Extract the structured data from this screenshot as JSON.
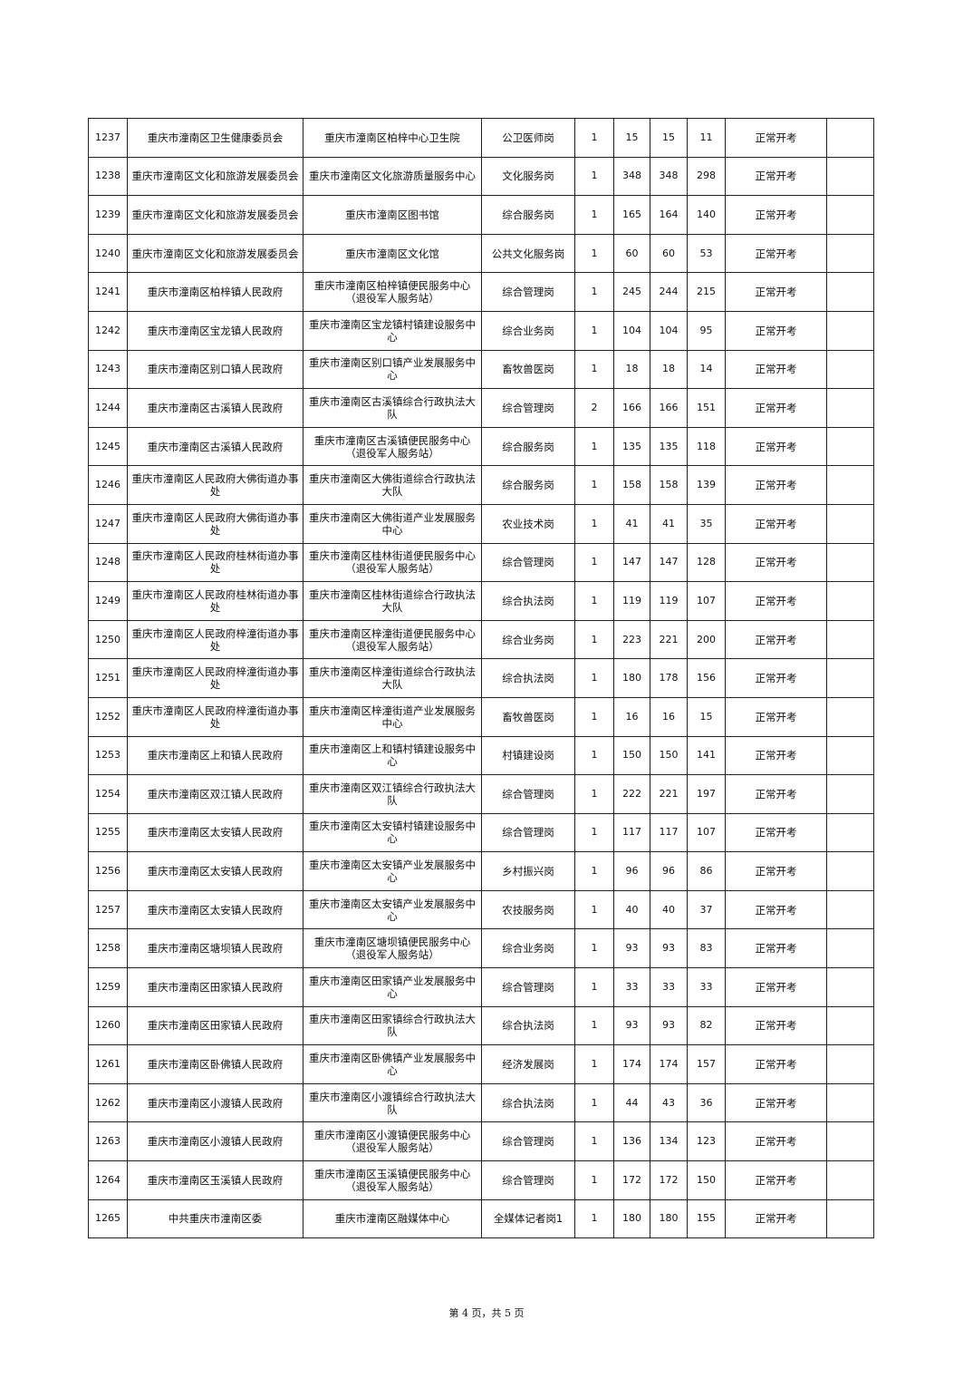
{
  "table": {
    "rows": [
      [
        "1237",
        "重庆市潼南区卫生健康委员会",
        "重庆市潼南区柏梓中心卫生院",
        "公卫医师岗",
        "1",
        "15",
        "15",
        "11",
        "正常开考",
        ""
      ],
      [
        "1238",
        "重庆市潼南区文化和旅游发展委员会",
        "重庆市潼南区文化旅游质量服务中心",
        "文化服务岗",
        "1",
        "348",
        "348",
        "298",
        "正常开考",
        ""
      ],
      [
        "1239",
        "重庆市潼南区文化和旅游发展委员会",
        "重庆市潼南区图书馆",
        "综合服务岗",
        "1",
        "165",
        "164",
        "140",
        "正常开考",
        ""
      ],
      [
        "1240",
        "重庆市潼南区文化和旅游发展委员会",
        "重庆市潼南区文化馆",
        "公共文化服务岗",
        "1",
        "60",
        "60",
        "53",
        "正常开考",
        ""
      ],
      [
        "1241",
        "重庆市潼南区柏梓镇人民政府",
        "重庆市潼南区柏梓镇便民服务中心（退役军人服务站）",
        "综合管理岗",
        "1",
        "245",
        "244",
        "215",
        "正常开考",
        ""
      ],
      [
        "1242",
        "重庆市潼南区宝龙镇人民政府",
        "重庆市潼南区宝龙镇村镇建设服务中心",
        "综合业务岗",
        "1",
        "104",
        "104",
        "95",
        "正常开考",
        ""
      ],
      [
        "1243",
        "重庆市潼南区别口镇人民政府",
        "重庆市潼南区别口镇产业发展服务中心",
        "畜牧兽医岗",
        "1",
        "18",
        "18",
        "14",
        "正常开考",
        ""
      ],
      [
        "1244",
        "重庆市潼南区古溪镇人民政府",
        "重庆市潼南区古溪镇综合行政执法大队",
        "综合管理岗",
        "2",
        "166",
        "166",
        "151",
        "正常开考",
        ""
      ],
      [
        "1245",
        "重庆市潼南区古溪镇人民政府",
        "重庆市潼南区古溪镇便民服务中心（退役军人服务站）",
        "综合服务岗",
        "1",
        "135",
        "135",
        "118",
        "正常开考",
        ""
      ],
      [
        "1246",
        "重庆市潼南区人民政府大佛街道办事处",
        "重庆市潼南区大佛街道综合行政执法大队",
        "综合服务岗",
        "1",
        "158",
        "158",
        "139",
        "正常开考",
        ""
      ],
      [
        "1247",
        "重庆市潼南区人民政府大佛街道办事处",
        "重庆市潼南区大佛街道产业发展服务中心",
        "农业技术岗",
        "1",
        "41",
        "41",
        "35",
        "正常开考",
        ""
      ],
      [
        "1248",
        "重庆市潼南区人民政府桂林街道办事处",
        "重庆市潼南区桂林街道便民服务中心（退役军人服务站）",
        "综合管理岗",
        "1",
        "147",
        "147",
        "128",
        "正常开考",
        ""
      ],
      [
        "1249",
        "重庆市潼南区人民政府桂林街道办事处",
        "重庆市潼南区桂林街道综合行政执法大队",
        "综合执法岗",
        "1",
        "119",
        "119",
        "107",
        "正常开考",
        ""
      ],
      [
        "1250",
        "重庆市潼南区人民政府梓潼街道办事处",
        "重庆市潼南区梓潼街道便民服务中心（退役军人服务站）",
        "综合业务岗",
        "1",
        "223",
        "221",
        "200",
        "正常开考",
        ""
      ],
      [
        "1251",
        "重庆市潼南区人民政府梓潼街道办事处",
        "重庆市潼南区梓潼街道综合行政执法大队",
        "综合执法岗",
        "1",
        "180",
        "178",
        "156",
        "正常开考",
        ""
      ],
      [
        "1252",
        "重庆市潼南区人民政府梓潼街道办事处",
        "重庆市潼南区梓潼街道产业发展服务中心",
        "畜牧兽医岗",
        "1",
        "16",
        "16",
        "15",
        "正常开考",
        ""
      ],
      [
        "1253",
        "重庆市潼南区上和镇人民政府",
        "重庆市潼南区上和镇村镇建设服务中心",
        "村镇建设岗",
        "1",
        "150",
        "150",
        "141",
        "正常开考",
        ""
      ],
      [
        "1254",
        "重庆市潼南区双江镇人民政府",
        "重庆市潼南区双江镇综合行政执法大队",
        "综合管理岗",
        "1",
        "222",
        "221",
        "197",
        "正常开考",
        ""
      ],
      [
        "1255",
        "重庆市潼南区太安镇人民政府",
        "重庆市潼南区太安镇村镇建设服务中心",
        "综合管理岗",
        "1",
        "117",
        "117",
        "107",
        "正常开考",
        ""
      ],
      [
        "1256",
        "重庆市潼南区太安镇人民政府",
        "重庆市潼南区太安镇产业发展服务中心",
        "乡村振兴岗",
        "1",
        "96",
        "96",
        "86",
        "正常开考",
        ""
      ],
      [
        "1257",
        "重庆市潼南区太安镇人民政府",
        "重庆市潼南区太安镇产业发展服务中心",
        "农技服务岗",
        "1",
        "40",
        "40",
        "37",
        "正常开考",
        ""
      ],
      [
        "1258",
        "重庆市潼南区塘坝镇人民政府",
        "重庆市潼南区塘坝镇便民服务中心（退役军人服务站）",
        "综合业务岗",
        "1",
        "93",
        "93",
        "83",
        "正常开考",
        ""
      ],
      [
        "1259",
        "重庆市潼南区田家镇人民政府",
        "重庆市潼南区田家镇产业发展服务中心",
        "综合管理岗",
        "1",
        "33",
        "33",
        "33",
        "正常开考",
        ""
      ],
      [
        "1260",
        "重庆市潼南区田家镇人民政府",
        "重庆市潼南区田家镇综合行政执法大队",
        "综合执法岗",
        "1",
        "93",
        "93",
        "82",
        "正常开考",
        ""
      ],
      [
        "1261",
        "重庆市潼南区卧佛镇人民政府",
        "重庆市潼南区卧佛镇产业发展服务中心",
        "经济发展岗",
        "1",
        "174",
        "174",
        "157",
        "正常开考",
        ""
      ],
      [
        "1262",
        "重庆市潼南区小渡镇人民政府",
        "重庆市潼南区小渡镇综合行政执法大队",
        "综合执法岗",
        "1",
        "44",
        "43",
        "36",
        "正常开考",
        ""
      ],
      [
        "1263",
        "重庆市潼南区小渡镇人民政府",
        "重庆市潼南区小渡镇便民服务中心（退役军人服务站）",
        "综合管理岗",
        "1",
        "136",
        "134",
        "123",
        "正常开考",
        ""
      ],
      [
        "1264",
        "重庆市潼南区玉溪镇人民政府",
        "重庆市潼南区玉溪镇便民服务中心（退役军人服务站）",
        "综合管理岗",
        "1",
        "172",
        "172",
        "150",
        "正常开考",
        ""
      ],
      [
        "1265",
        "中共重庆市潼南区委",
        "重庆市潼南区融媒体中心",
        "全媒体记者岗1",
        "1",
        "180",
        "180",
        "155",
        "正常开考",
        ""
      ]
    ]
  },
  "footer": {
    "page_label": "第 4 页，共 5 页"
  }
}
